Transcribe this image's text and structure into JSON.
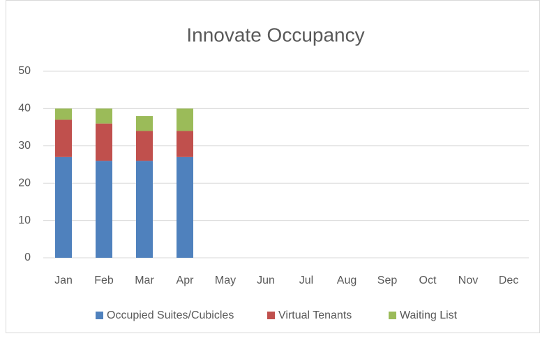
{
  "chart_data": {
    "type": "stacked_bar",
    "title": "Innovate Occupancy",
    "categories": [
      "Jan",
      "Feb",
      "Mar",
      "Apr",
      "May",
      "Jun",
      "Jul",
      "Aug",
      "Sep",
      "Oct",
      "Nov",
      "Dec"
    ],
    "series": [
      {
        "name": "Occupied Suites/Cubicles",
        "color": "#4f81bd",
        "values": [
          27,
          26,
          26,
          27,
          null,
          null,
          null,
          null,
          null,
          null,
          null,
          null
        ]
      },
      {
        "name": "Virtual Tenants",
        "color": "#c0504d",
        "values": [
          10,
          10,
          8,
          7,
          null,
          null,
          null,
          null,
          null,
          null,
          null,
          null
        ]
      },
      {
        "name": "Waiting List",
        "color": "#9bbb59",
        "values": [
          3,
          4,
          4,
          6,
          null,
          null,
          null,
          null,
          null,
          null,
          null,
          null
        ]
      }
    ],
    "ylim": [
      0,
      50
    ],
    "yticks": [
      0,
      10,
      20,
      30,
      40,
      50
    ],
    "grid": true,
    "legend": "bottom"
  }
}
